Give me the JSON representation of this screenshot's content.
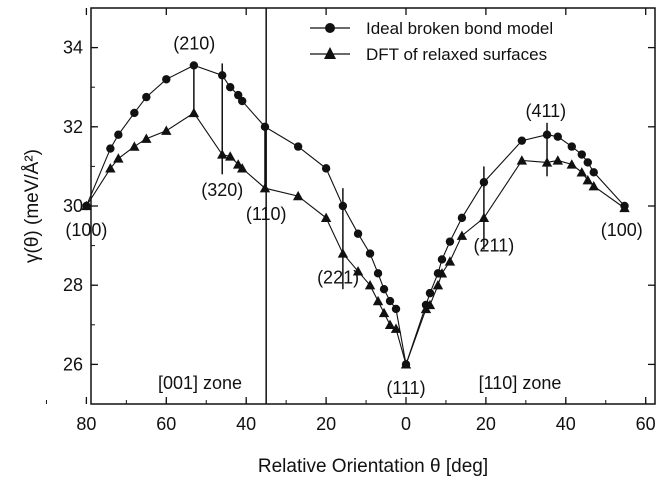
{
  "chart_data": {
    "type": "scatter",
    "x_axis": {
      "label": "Relative Orientation θ [deg]",
      "ticks": [
        "80",
        "60",
        "40",
        "20",
        "0",
        "20",
        "40",
        "60"
      ]
    },
    "y_axis": {
      "label": "γ(θ) (meV/Å²)",
      "range": [
        25,
        35
      ],
      "ticks": [
        "26",
        "28",
        "30",
        "32",
        "34"
      ]
    },
    "zones": [
      {
        "name": "[001] zone",
        "x_range": [
          80,
          0
        ]
      },
      {
        "name": "[110] zone",
        "x_range": [
          0,
          55
        ]
      }
    ],
    "zone_divider_x": -35,
    "legend": {
      "placement": "top-right"
    },
    "series": [
      {
        "name": "Ideal broken bond model",
        "marker": "circle",
        "points": [
          [
            -80,
            30.0
          ],
          [
            -74,
            31.45
          ],
          [
            -72,
            31.8
          ],
          [
            -68,
            32.35
          ],
          [
            -65,
            32.75
          ],
          [
            -60,
            33.2
          ],
          [
            -53.1,
            33.55
          ],
          [
            -46,
            33.3
          ],
          [
            -44,
            33.0
          ],
          [
            -42,
            32.8
          ],
          [
            -41,
            32.65
          ],
          [
            -35.3,
            32.0
          ],
          [
            -27,
            31.5
          ],
          [
            -20,
            30.95
          ],
          [
            -15.8,
            30.0
          ],
          [
            -12,
            29.3
          ],
          [
            -9,
            28.8
          ],
          [
            -7,
            28.3
          ],
          [
            -5.5,
            27.9
          ],
          [
            -4,
            27.6
          ],
          [
            -2.5,
            27.4
          ],
          [
            0,
            26.0
          ],
          [
            5,
            27.5
          ],
          [
            6,
            27.8
          ],
          [
            8,
            28.3
          ],
          [
            9,
            28.65
          ],
          [
            11,
            29.1
          ],
          [
            14,
            29.7
          ],
          [
            19.5,
            30.6
          ],
          [
            29,
            31.65
          ],
          [
            35.3,
            31.8
          ],
          [
            38,
            31.75
          ],
          [
            41.5,
            31.5
          ],
          [
            44,
            31.3
          ],
          [
            45.5,
            31.1
          ],
          [
            47,
            30.85
          ],
          [
            54.7,
            30.0
          ]
        ]
      },
      {
        "name": "DFT of relaxed surfaces",
        "marker": "triangle",
        "points": [
          [
            -80,
            30.0
          ],
          [
            -74,
            30.95
          ],
          [
            -72,
            31.2
          ],
          [
            -68,
            31.5
          ],
          [
            -65,
            31.7
          ],
          [
            -60,
            31.9
          ],
          [
            -53.1,
            32.35
          ],
          [
            -46,
            31.3
          ],
          [
            -44,
            31.25
          ],
          [
            -42,
            31.05
          ],
          [
            -41,
            30.95
          ],
          [
            -35.3,
            30.45
          ],
          [
            -27,
            30.25
          ],
          [
            -20,
            29.7
          ],
          [
            -15.8,
            28.8
          ],
          [
            -12,
            28.35
          ],
          [
            -9,
            28.0
          ],
          [
            -7,
            27.6
          ],
          [
            -5.5,
            27.3
          ],
          [
            -4,
            27.0
          ],
          [
            -2.5,
            26.9
          ],
          [
            0,
            26.0
          ],
          [
            5,
            27.4
          ],
          [
            6,
            27.5
          ],
          [
            8,
            28.0
          ],
          [
            9,
            28.3
          ],
          [
            11,
            28.6
          ],
          [
            14,
            29.25
          ],
          [
            19.5,
            29.7
          ],
          [
            29,
            31.15
          ],
          [
            35.3,
            31.1
          ],
          [
            38,
            31.15
          ],
          [
            41.5,
            31.05
          ],
          [
            44,
            30.85
          ],
          [
            45.5,
            30.65
          ],
          [
            47,
            30.5
          ],
          [
            54.7,
            29.95
          ]
        ]
      }
    ],
    "labels": [
      {
        "text": "(100)",
        "x": -80,
        "y": 29.4
      },
      {
        "text": "(210)",
        "x": -53,
        "y": 34.1
      },
      {
        "text": "(320)",
        "x": -46,
        "y": 30.4
      },
      {
        "text": "(110)",
        "x": -35,
        "y": 29.8
      },
      {
        "text": "(221)",
        "x": -17,
        "y": 28.2
      },
      {
        "text": "(111)",
        "x": 0,
        "y": 25.4
      },
      {
        "text": "(211)",
        "x": 22,
        "y": 29.0
      },
      {
        "text": "(411)",
        "x": 35,
        "y": 32.4
      },
      {
        "text": "(100)",
        "x": 54,
        "y": 29.4
      }
    ]
  }
}
